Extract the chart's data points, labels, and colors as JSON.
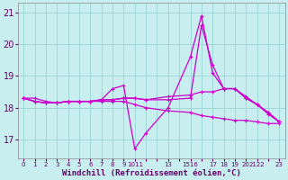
{
  "xlabel": "Windchill (Refroidissement éolien,°C)",
  "bg_color": "#c8eef0",
  "grid_color": "#a0d8d8",
  "line_color": "#cc00cc",
  "x_tick_labels": [
    "0",
    "1",
    "2",
    "3",
    "4",
    "5",
    "6",
    "7",
    "8",
    "9",
    "1011",
    "",
    "13",
    "",
    "1516",
    "17",
    "18",
    "19",
    "20",
    "2122",
    "23"
  ],
  "ylim": [
    16.4,
    21.3
  ],
  "xlim": [
    -0.5,
    23.5
  ],
  "y_ticks": [
    17,
    18,
    19,
    20,
    21
  ],
  "series": [
    {
      "x": [
        0,
        1,
        2,
        3,
        4,
        5,
        6,
        7,
        8,
        9,
        10,
        11,
        13,
        15,
        16,
        17,
        18,
        19,
        20,
        21,
        22,
        23
      ],
      "y": [
        18.3,
        18.3,
        18.2,
        18.15,
        18.2,
        18.2,
        18.2,
        18.25,
        18.6,
        18.7,
        16.7,
        17.2,
        18.0,
        19.6,
        20.9,
        19.1,
        18.6,
        18.6,
        18.35,
        18.1,
        17.8,
        17.55
      ]
    },
    {
      "x": [
        0,
        1,
        2,
        3,
        4,
        5,
        6,
        7,
        8,
        9,
        10,
        11,
        13,
        15,
        16,
        17,
        18,
        19,
        20,
        21,
        22,
        23
      ],
      "y": [
        18.3,
        18.2,
        18.15,
        18.15,
        18.2,
        18.2,
        18.2,
        18.2,
        18.2,
        18.2,
        18.1,
        18.0,
        17.9,
        17.85,
        17.75,
        17.7,
        17.65,
        17.6,
        17.6,
        17.55,
        17.5,
        17.5
      ]
    },
    {
      "x": [
        0,
        1,
        2,
        3,
        4,
        5,
        6,
        7,
        8,
        9,
        10,
        11,
        13,
        15,
        16,
        17,
        18,
        19,
        20,
        21,
        22,
        23
      ],
      "y": [
        18.3,
        18.2,
        18.15,
        18.15,
        18.2,
        18.2,
        18.2,
        18.25,
        18.25,
        18.3,
        18.3,
        18.25,
        18.25,
        18.3,
        20.6,
        19.35,
        18.6,
        18.6,
        18.3,
        18.1,
        17.85,
        17.55
      ]
    },
    {
      "x": [
        0,
        1,
        2,
        3,
        4,
        5,
        6,
        7,
        8,
        9,
        10,
        11,
        13,
        15,
        16,
        17,
        18,
        19,
        20,
        21,
        22,
        23
      ],
      "y": [
        18.3,
        18.2,
        18.15,
        18.15,
        18.2,
        18.2,
        18.2,
        18.25,
        18.25,
        18.3,
        18.3,
        18.25,
        18.35,
        18.4,
        18.5,
        18.5,
        18.6,
        18.6,
        18.3,
        18.1,
        17.85,
        17.55
      ]
    }
  ]
}
